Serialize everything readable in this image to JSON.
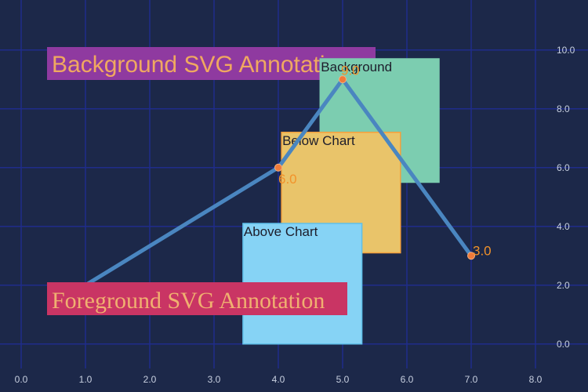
{
  "chart_data": {
    "type": "line",
    "title": "",
    "xlabel": "",
    "ylabel": "",
    "xlim": [
      0,
      8
    ],
    "ylim": [
      -0.3,
      11.3
    ],
    "grid": true,
    "x_ticks": [
      0,
      1,
      2,
      3,
      4,
      5,
      6,
      7,
      8
    ],
    "x_tick_labels": [
      "0.0",
      "1.0",
      "2.0",
      "3.0",
      "4.0",
      "5.0",
      "6.0",
      "7.0",
      "8.0"
    ],
    "y_ticks": [
      0,
      2,
      4,
      6,
      8,
      10
    ],
    "y_tick_labels": [
      "0.0",
      "2.0",
      "4.0",
      "6.0",
      "8.0",
      "10.0"
    ],
    "y_axis_position": "right",
    "series": [
      {
        "x": [
          1,
          4,
          5,
          7
        ],
        "y": [
          2,
          6,
          9,
          3
        ],
        "color": "#4a86c0",
        "marker_color": "#f07a3a",
        "data_labels": [
          {
            "index": 1,
            "text": "6.0"
          },
          {
            "index": 2,
            "text": "9.0"
          },
          {
            "index": 3,
            "text": "3.0"
          }
        ]
      }
    ],
    "annotations": [
      {
        "text": "Background",
        "x0": 4.65,
        "x1": 6.5,
        "y0": 5.5,
        "y1": 9.7,
        "fill": "#7ccdb0",
        "stroke": "#7ccdb0",
        "layer": "below"
      },
      {
        "text": "Below Chart",
        "x0": 4.05,
        "x1": 5.9,
        "y0": 3.1,
        "y1": 7.2,
        "fill": "#e9c46a",
        "stroke": "#f2a03d",
        "layer": "below"
      },
      {
        "text": "Above Chart",
        "x0": 3.45,
        "x1": 5.3,
        "y0": 0.0,
        "y1": 4.1,
        "fill": "#86d3f5",
        "stroke": "#5fc0ea",
        "layer": "above"
      }
    ],
    "svg_annotations": [
      {
        "text": "Background SVG Annotation",
        "fill": "#8f3aa0",
        "text_color": "#f0a860",
        "layer": "below"
      },
      {
        "text": "Foreground SVG Annotation",
        "fill": "#c93564",
        "text_color": "#f0b070",
        "layer": "above"
      }
    ],
    "colors": {
      "background": "#1c2849",
      "grid": "#1f2c8a",
      "tick_text": "#c8d0e0"
    }
  }
}
